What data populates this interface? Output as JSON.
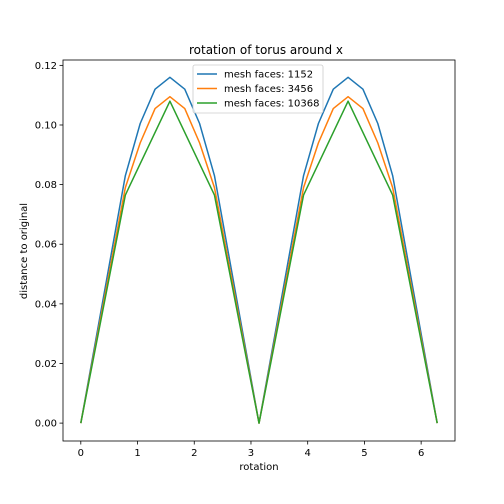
{
  "chart_data": {
    "type": "line",
    "title": "rotation of torus around x",
    "xlabel": "rotation",
    "ylabel": "distance to original",
    "xlim": [
      -0.314,
      6.597
    ],
    "ylim": [
      -0.006,
      0.1218
    ],
    "xticks": [
      0,
      1,
      2,
      3,
      4,
      5,
      6
    ],
    "yticks": [
      0.0,
      0.02,
      0.04,
      0.06,
      0.08,
      0.1,
      0.12
    ],
    "ytick_labels": [
      "0.00",
      "0.02",
      "0.04",
      "0.06",
      "0.08",
      "0.10",
      "0.12"
    ],
    "grid": false,
    "legend_position": "top-center",
    "series": [
      {
        "name": "mesh faces: 1152",
        "color": "#1f77b4",
        "x": [
          0,
          0.785,
          1.047,
          1.309,
          1.571,
          1.833,
          2.094,
          2.356,
          3.142,
          3.927,
          4.189,
          4.451,
          4.712,
          4.974,
          5.236,
          5.498,
          6.283
        ],
        "y": [
          0,
          0.083,
          0.1005,
          0.112,
          0.116,
          0.112,
          0.1005,
          0.083,
          0,
          0.083,
          0.1005,
          0.112,
          0.116,
          0.112,
          0.1005,
          0.083,
          0
        ]
      },
      {
        "name": "mesh faces: 3456",
        "color": "#ff7f0e",
        "x": [
          0,
          0.785,
          1.047,
          1.309,
          1.571,
          1.833,
          2.094,
          2.356,
          3.142,
          3.927,
          4.189,
          4.451,
          4.712,
          4.974,
          5.236,
          5.498,
          6.283
        ],
        "y": [
          0,
          0.079,
          0.094,
          0.1055,
          0.1095,
          0.1055,
          0.094,
          0.079,
          0,
          0.079,
          0.094,
          0.1055,
          0.1095,
          0.1055,
          0.094,
          0.079,
          0
        ]
      },
      {
        "name": "mesh faces: 10368",
        "color": "#2ca02c",
        "x": [
          0,
          0.785,
          1.571,
          2.356,
          3.142,
          3.927,
          4.712,
          5.498,
          6.283
        ],
        "y": [
          0,
          0.0765,
          0.108,
          0.0765,
          0,
          0.0765,
          0.108,
          0.0765,
          0
        ]
      }
    ]
  }
}
